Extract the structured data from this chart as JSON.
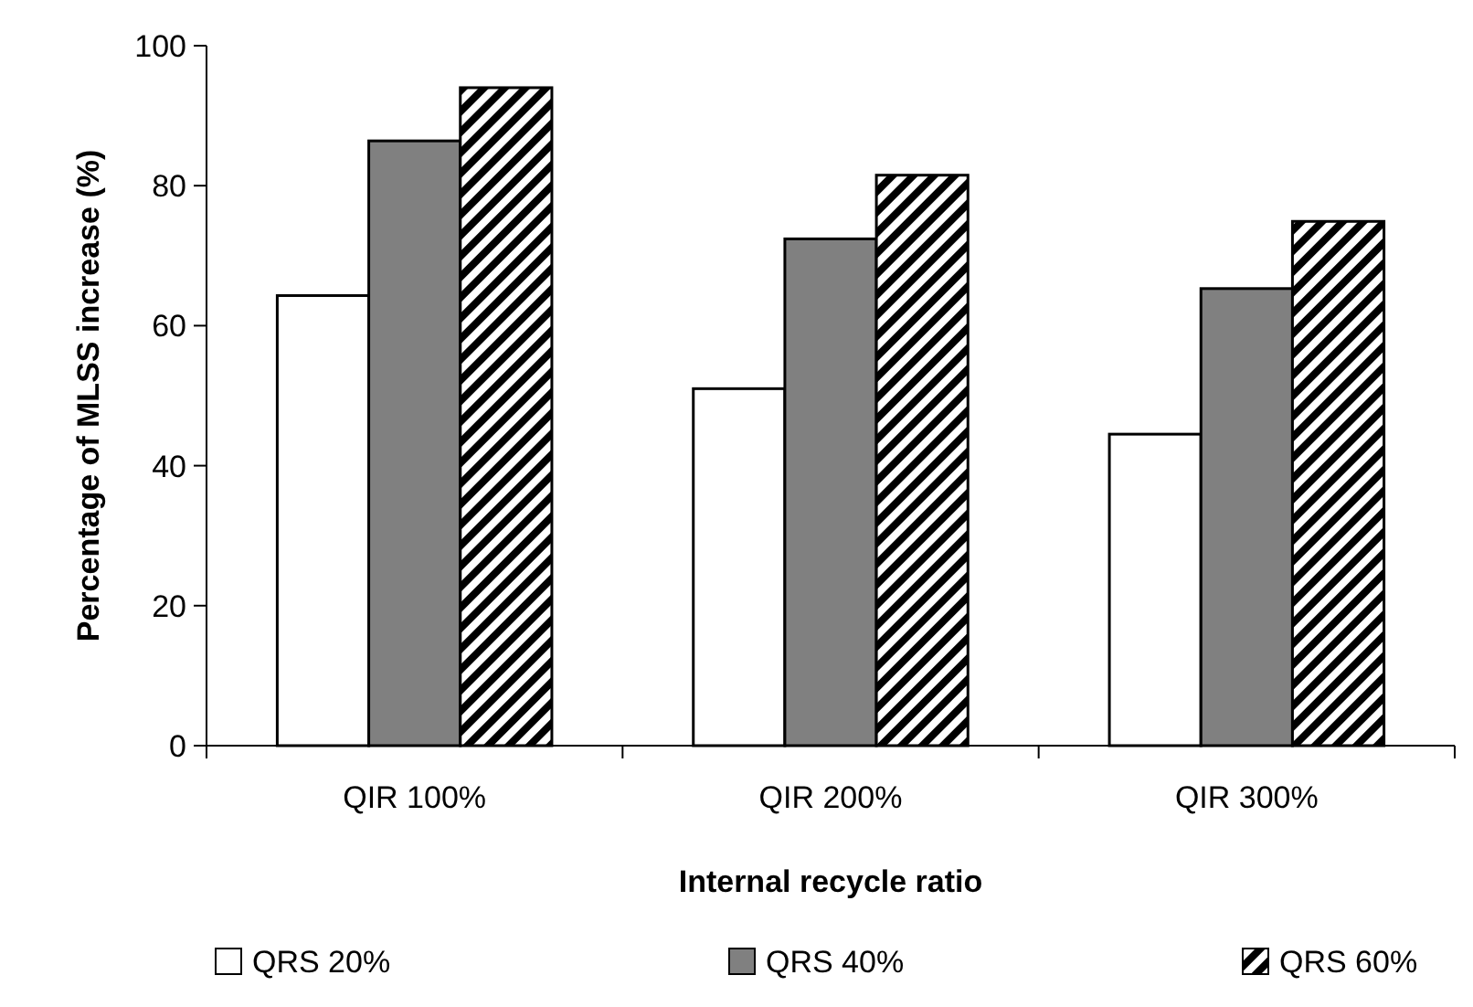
{
  "chart_data": {
    "type": "bar",
    "xlabel": "Internal recycle ratio",
    "ylabel": "Percentage of MLSS increase (%)",
    "categories": [
      "QIR 100%",
      "QIR 200%",
      "QIR 300%"
    ],
    "series": [
      {
        "name": "QRS 20%",
        "color": "#ffffff",
        "values": [
          64.3,
          51.0,
          44.5
        ]
      },
      {
        "name": "QRS 40%",
        "color": "#808080",
        "values": [
          86.4,
          72.4,
          65.3
        ]
      },
      {
        "name": "QRS 60%",
        "color": "#000000",
        "values": [
          94.0,
          81.5,
          74.9
        ]
      }
    ],
    "ylim": [
      0,
      100
    ],
    "yticks": [
      0,
      20,
      40,
      60,
      80,
      100
    ],
    "grid": false,
    "legend": "bottom"
  }
}
